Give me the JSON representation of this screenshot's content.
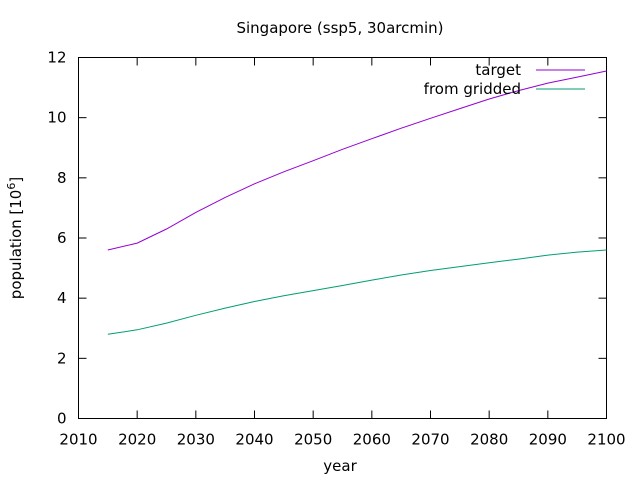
{
  "chart_data": {
    "type": "line",
    "title": "Singapore (ssp5, 30arcmin)",
    "xlabel": "year",
    "ylabel_base": "population [10",
    "ylabel_exp": "6",
    "ylabel_close": "]",
    "xlim": [
      2010,
      2100
    ],
    "ylim": [
      0,
      12
    ],
    "xticks": [
      2010,
      2020,
      2030,
      2040,
      2050,
      2060,
      2070,
      2080,
      2090,
      2100
    ],
    "yticks": [
      0,
      2,
      4,
      6,
      8,
      10,
      12
    ],
    "grid": false,
    "legend_position": "top-right",
    "x": [
      2015,
      2020,
      2025,
      2030,
      2035,
      2040,
      2045,
      2050,
      2055,
      2060,
      2065,
      2070,
      2075,
      2080,
      2085,
      2090,
      2095,
      2100
    ],
    "series": [
      {
        "name": "target",
        "color": "#9400d3",
        "values": [
          5.6,
          5.83,
          6.3,
          6.85,
          7.35,
          7.8,
          8.2,
          8.57,
          8.95,
          9.3,
          9.65,
          9.98,
          10.3,
          10.62,
          10.9,
          11.15,
          11.35,
          11.55
        ]
      },
      {
        "name": "from gridded",
        "color": "#009e73",
        "values": [
          2.8,
          2.95,
          3.17,
          3.43,
          3.67,
          3.89,
          4.08,
          4.25,
          4.42,
          4.6,
          4.77,
          4.92,
          5.05,
          5.18,
          5.3,
          5.43,
          5.53,
          5.6
        ]
      }
    ]
  }
}
